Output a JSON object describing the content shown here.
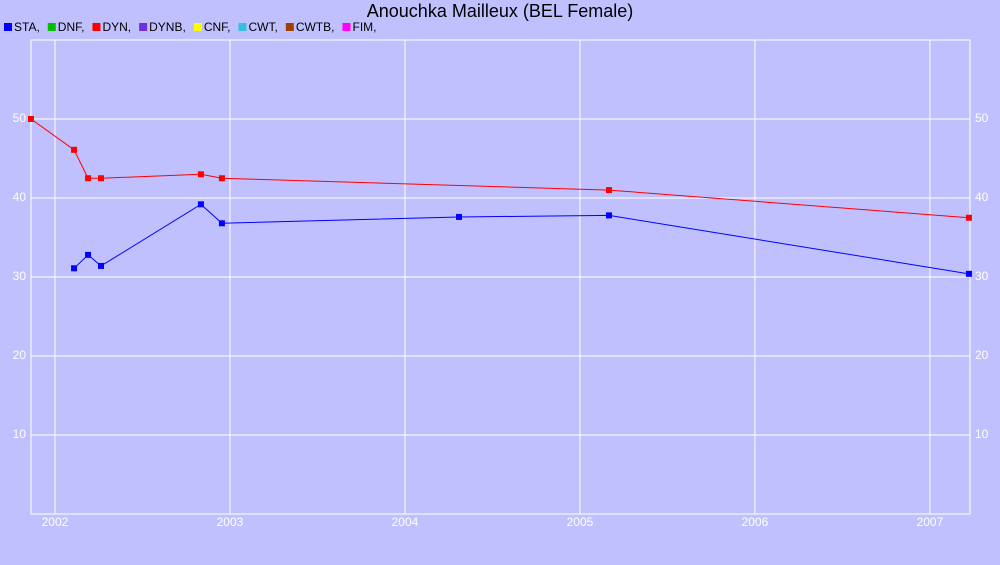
{
  "chart_data": {
    "type": "line",
    "title": "Anouchka Mailleux (BEL Female)",
    "series": [
      {
        "name": "STA,",
        "color": "#0000ff",
        "x": [
          2002.109,
          2002.189,
          2002.263,
          2002.834,
          2002.954,
          2004.309,
          2005.166,
          2007.223
        ],
        "values": [
          31.1,
          32.8,
          31.4,
          39.2,
          36.8,
          37.6,
          37.8,
          30.4
        ]
      },
      {
        "name": "DNF,",
        "color": "#00c000",
        "x": [],
        "values": []
      },
      {
        "name": "DYN,",
        "color": "#ff0000",
        "x": [
          2001.863,
          2002.109,
          2002.189,
          2002.263,
          2002.834,
          2002.954,
          2005.166,
          2007.223
        ],
        "values": [
          50,
          46.1,
          42.5,
          42.5,
          43,
          42.5,
          41,
          37.5
        ]
      },
      {
        "name": "DYNB,",
        "color": "#7030e0",
        "x": [],
        "values": []
      },
      {
        "name": "CNF,",
        "color": "#ffff00",
        "x": [],
        "values": []
      },
      {
        "name": "CWT,",
        "color": "#30c0e0",
        "x": [],
        "values": []
      },
      {
        "name": "CWTB,",
        "color": "#a04000",
        "x": [],
        "values": []
      },
      {
        "name": "FIM,",
        "color": "#ff00ff",
        "x": [],
        "values": []
      }
    ],
    "xlim": [
      2001.863,
      2007.229
    ],
    "xticks": [
      2002,
      2003,
      2004,
      2005,
      2006,
      2007
    ],
    "ylim": [
      0,
      60
    ],
    "yticks": [
      10,
      20,
      30,
      40,
      50
    ],
    "grid": true
  }
}
